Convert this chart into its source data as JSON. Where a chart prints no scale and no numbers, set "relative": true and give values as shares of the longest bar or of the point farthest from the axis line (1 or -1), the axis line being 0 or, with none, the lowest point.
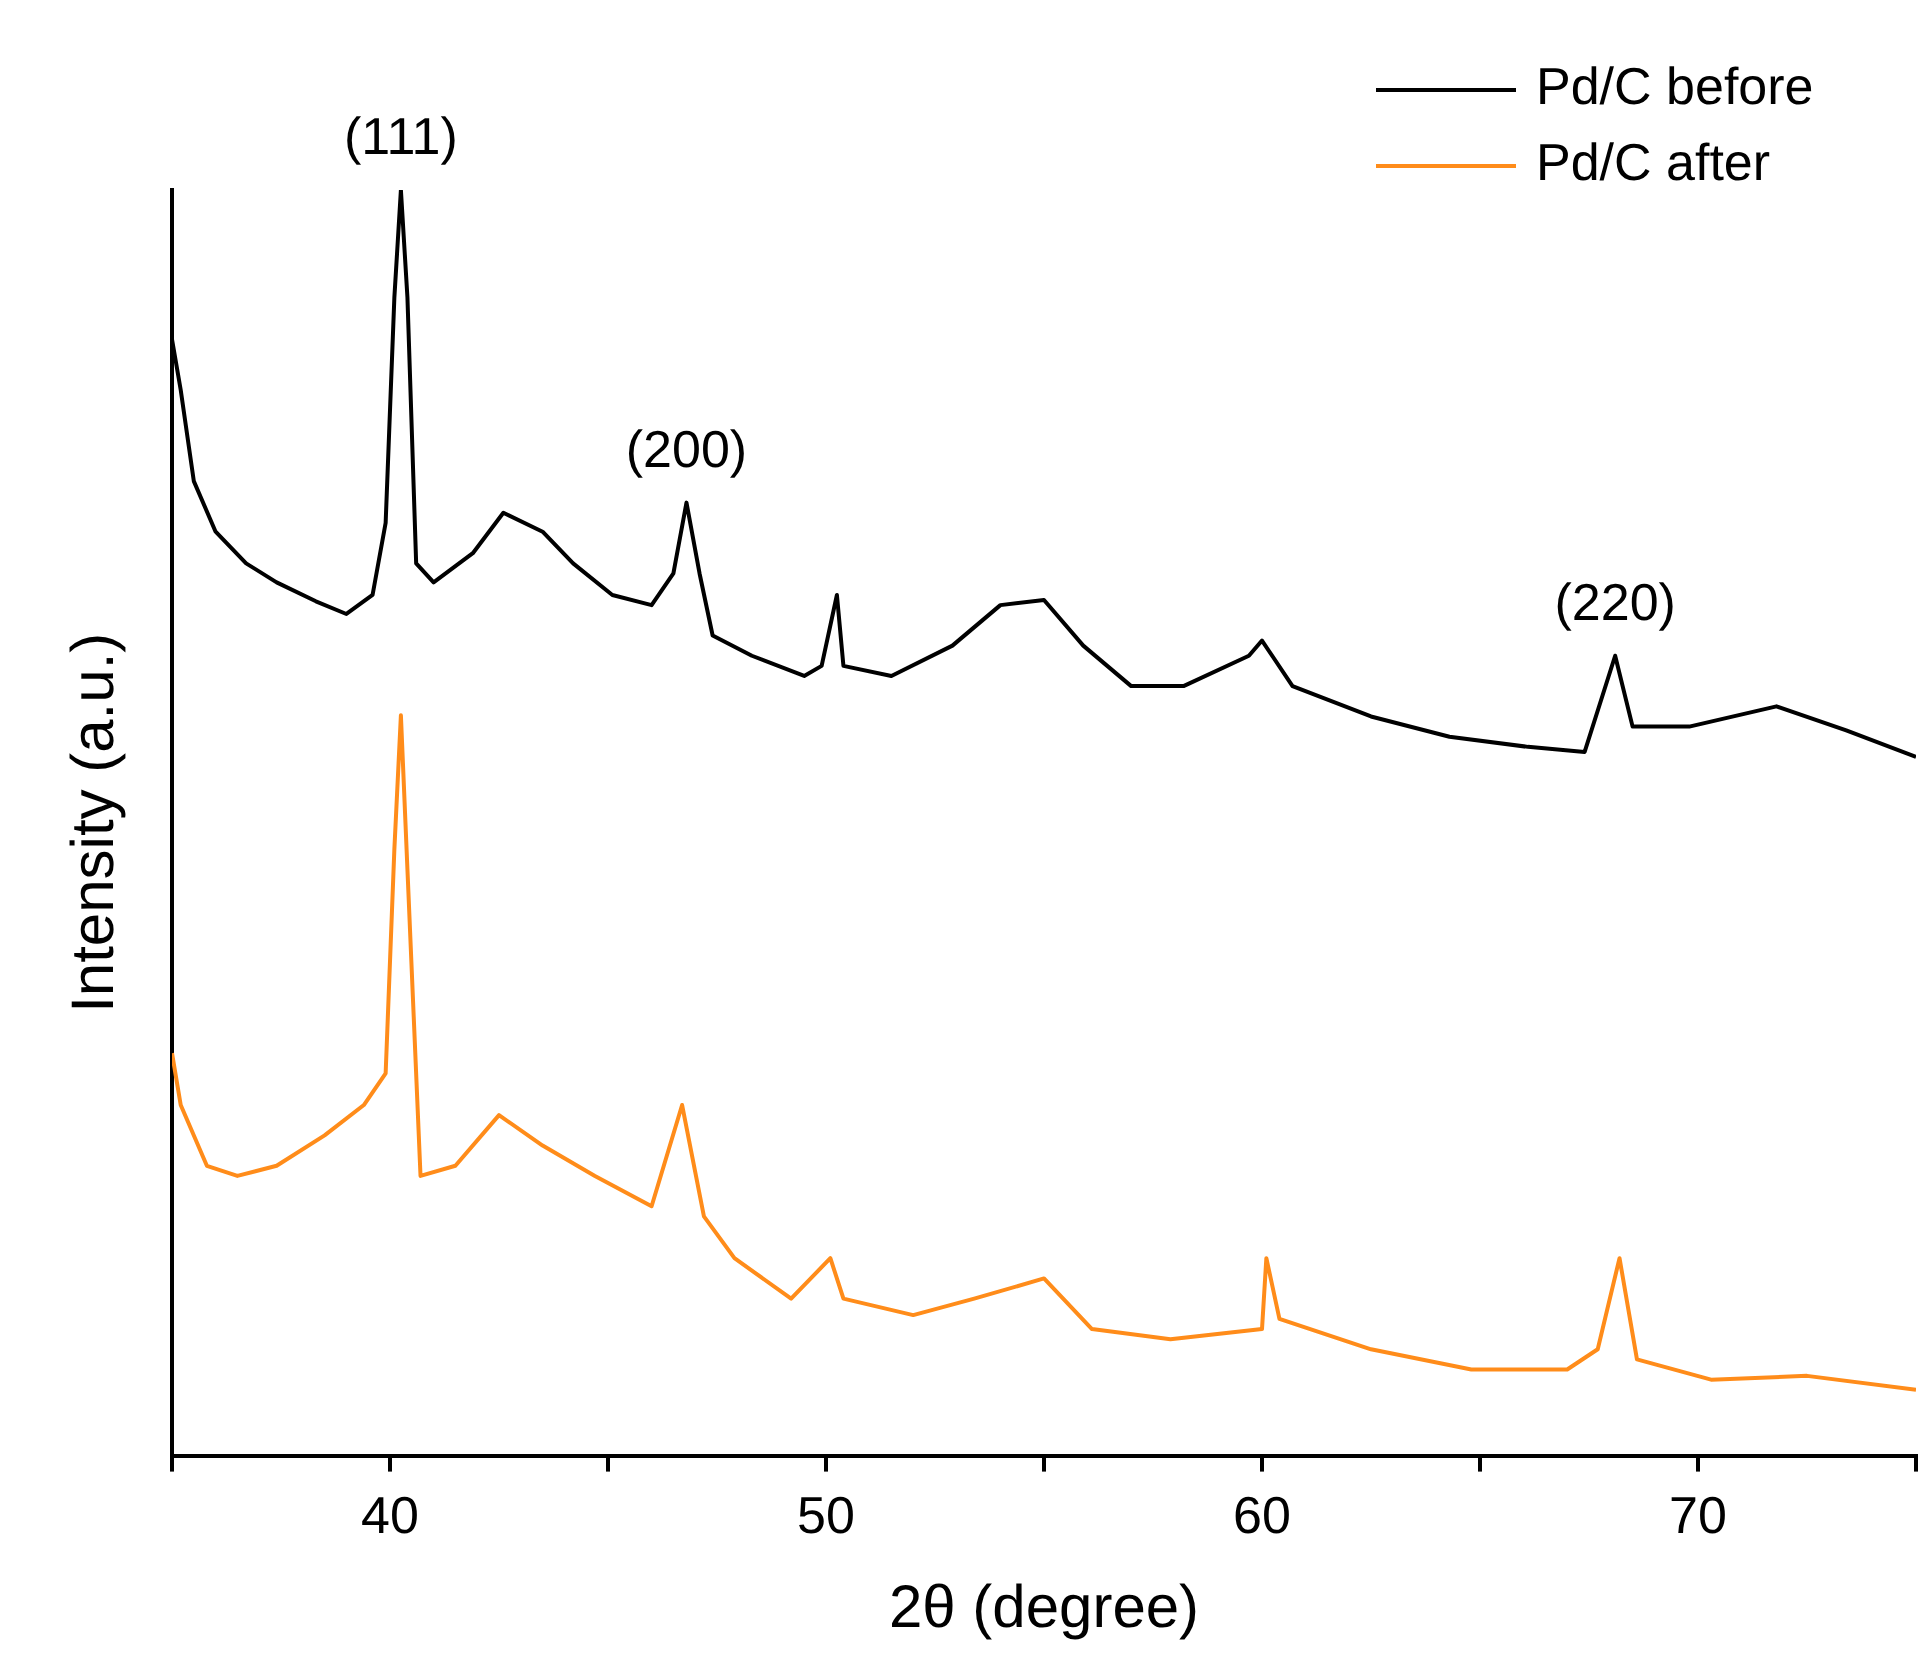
{
  "chart_data": {
    "type": "line",
    "xlabel": "2θ (degree)",
    "ylabel": "Intensity (a.u.)",
    "relative": true,
    "grid": false,
    "legend": "top right",
    "marker": "none",
    "line_style": "solid",
    "xlim": [
      35,
      75
    ],
    "xticks": [
      {
        "value": 35,
        "label": null
      },
      40,
      {
        "value": 45,
        "label": null
      },
      50,
      {
        "value": 55,
        "label": null
      },
      60,
      {
        "value": 65,
        "label": null
      },
      70,
      {
        "value": 75,
        "label": null
      }
    ],
    "annotations": [
      {
        "text": "(111)",
        "x": 40.25,
        "y": 1
      },
      {
        "text": "(200)",
        "x": 46.8,
        "y": 0.753
      },
      {
        "text": "(220)",
        "x": 68.1,
        "y": 0.632
      }
    ],
    "series": [
      {
        "name": "Pd/C before",
        "color": "#000000",
        "x": [
          35,
          35.2,
          35.5,
          36,
          36.7,
          37.4,
          38.3,
          39,
          39.6,
          39.9,
          40.1,
          40.25,
          40.4,
          40.6,
          41,
          41.9,
          42.6,
          43.5,
          44.2,
          45.1,
          46,
          46.5,
          46.8,
          47.1,
          47.4,
          48.3,
          49.5,
          49.9,
          50.25,
          50.4,
          51.5,
          52.9,
          54,
          55,
          55.9,
          57,
          58.2,
          59.7,
          60,
          60.7,
          62.5,
          64.3,
          66.1,
          67.4,
          68.1,
          68.5,
          69.8,
          71.8,
          73.4,
          75
        ],
        "values": [
          0.882,
          0.842,
          0.77,
          0.73,
          0.705,
          0.69,
          0.675,
          0.665,
          0.68,
          0.737,
          0.915,
          1,
          0.915,
          0.705,
          0.69,
          0.713,
          0.745,
          0.73,
          0.705,
          0.68,
          0.672,
          0.697,
          0.753,
          0.697,
          0.648,
          0.632,
          0.616,
          0.624,
          0.68,
          0.624,
          0.616,
          0.64,
          0.672,
          0.676,
          0.64,
          0.608,
          0.608,
          0.632,
          0.644,
          0.608,
          0.584,
          0.568,
          0.56,
          0.556,
          0.632,
          0.576,
          0.576,
          0.592,
          0.573,
          0.552
        ]
      },
      {
        "name": "Pd/C after",
        "color": "#ff8c1a",
        "x": [
          35,
          35.2,
          35.8,
          36.5,
          37.4,
          38.5,
          39.4,
          39.9,
          40.1,
          40.25,
          40.4,
          40.7,
          41.5,
          42.5,
          43.5,
          44.7,
          46,
          46.7,
          47.2,
          47.9,
          49.2,
          50.1,
          50.4,
          52,
          53.4,
          55,
          56.1,
          57.9,
          60,
          60.1,
          60.4,
          62.5,
          64.8,
          67,
          67.7,
          68.2,
          68.6,
          70.3,
          72.5,
          75
        ],
        "values": [
          0.318,
          0.277,
          0.229,
          0.221,
          0.229,
          0.253,
          0.277,
          0.302,
          0.479,
          0.585,
          0.463,
          0.221,
          0.229,
          0.269,
          0.245,
          0.221,
          0.197,
          0.277,
          0.189,
          0.156,
          0.124,
          0.156,
          0.124,
          0.111,
          0.124,
          0.14,
          0.1,
          0.092,
          0.1,
          0.156,
          0.108,
          0.084,
          0.068,
          0.068,
          0.084,
          0.156,
          0.076,
          0.06,
          0.063,
          0.052
        ]
      }
    ]
  }
}
